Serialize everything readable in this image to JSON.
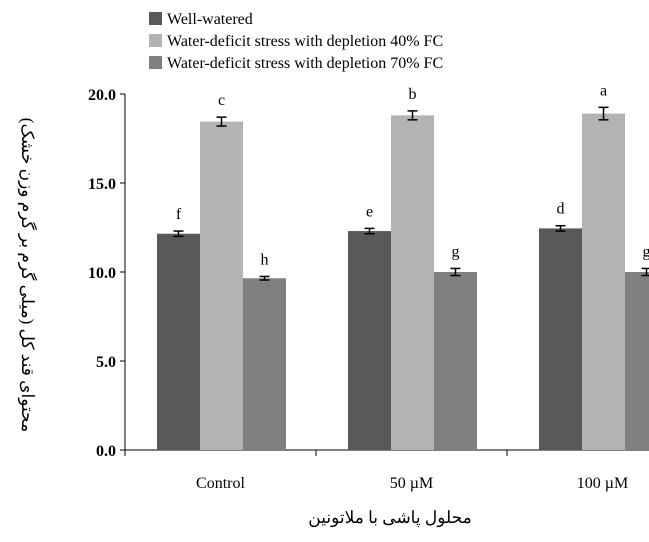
{
  "chart_data": {
    "type": "bar",
    "categories": [
      "Control",
      "50 µM",
      "100 µM"
    ],
    "series": [
      {
        "name": "Well-watered",
        "color": "#595959",
        "values": [
          12.15,
          12.3,
          12.45
        ],
        "errors": [
          0.15,
          0.15,
          0.15
        ],
        "letters": [
          "f",
          "e",
          "d"
        ]
      },
      {
        "name": "Water-deficit stress with depletion 40% FC",
        "color": "#b3b3b3",
        "values": [
          18.45,
          18.8,
          18.9
        ],
        "errors": [
          0.25,
          0.25,
          0.35
        ],
        "letters": [
          "c",
          "b",
          "a"
        ]
      },
      {
        "name": "Water-deficit stress with depletion 70% FC",
        "color": "#808080",
        "values": [
          9.65,
          10.0,
          10.0
        ],
        "errors": [
          0.1,
          0.2,
          0.2
        ],
        "letters": [
          "h",
          "g",
          "g"
        ]
      }
    ],
    "yticks": [
      "0.0",
      "5.0",
      "10.0",
      "15.0",
      "20.0"
    ],
    "ylim": [
      0,
      20
    ],
    "xlabel": "محلول پاشی با ملاتونین",
    "ylabel": "محتوای قند کل (میلی گرم بر گرم وزن خشک)",
    "legend_position": "top-left",
    "grid": false
  }
}
